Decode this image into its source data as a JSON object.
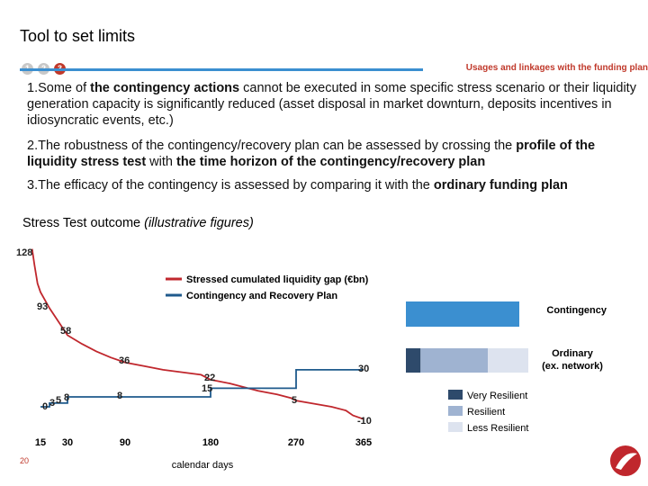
{
  "header": {
    "title": "Tool to set limits",
    "steps": [
      "1",
      "2",
      "3"
    ],
    "usages_label": "Usages and linkages with the funding plan"
  },
  "points": [
    {
      "num": "1.",
      "pre": "Some of ",
      "bold": "the contingency actions",
      "post": " cannot be executed in some specific stress scenario or their liquidity generation capacity is significantly reduced (asset disposal in market downturn, deposits incentives in idiosyncratic events, etc.)"
    },
    {
      "num": "2.",
      "pre": "The robustness of the contingency/recovery plan can be assessed by crossing the ",
      "bold": "profile of the liquidity stress test",
      "mid": " with ",
      "bold2": "the time horizon of the contingency/recovery plan",
      "post": ""
    },
    {
      "num": "3.",
      "pre": "The efficacy of the contingency is assessed by comparing it with the ",
      "bold": "ordinary funding plan",
      "post": ""
    }
  ],
  "chart_title": {
    "main": "Stress Test outcome ",
    "italic": "(illustrative figures)"
  },
  "page_number": "20",
  "colors": {
    "stressed": "#c0272d",
    "recovery": "#1f5a8c",
    "contingency_bar": "#3b8fd0",
    "very_resilient": "#2e4a6b",
    "resilient": "#9fb3d1",
    "less_resilient": "#dde3ef",
    "accent_red": "#c0392b",
    "step_grey": "#c8c8c8"
  },
  "chart_data": {
    "type": "line",
    "xlabel": "calendar days",
    "x_ticks": [
      "15",
      "30",
      "90",
      "180",
      "270",
      "365"
    ],
    "series": [
      {
        "name": "Stressed cumulated liquidity gap (€bn)",
        "x": [
          1,
          5,
          10,
          15,
          20,
          30,
          45,
          60,
          75,
          90,
          110,
          130,
          150,
          170,
          180,
          200,
          215,
          230,
          250,
          265,
          270,
          290,
          300,
          320,
          340,
          350,
          365
        ],
        "y": [
          128,
          115,
          100,
          93,
          80,
          58,
          51,
          45,
          40,
          36,
          33,
          30,
          28,
          26,
          22,
          19,
          16,
          13,
          10,
          7,
          5,
          3,
          2,
          0,
          -3,
          -7,
          -10
        ]
      },
      {
        "name": "Contingency and Recovery Plan",
        "x": [
          15,
          20,
          20,
          30,
          30,
          90,
          90,
          180,
          180,
          270,
          270,
          365
        ],
        "y": [
          0,
          0,
          3,
          3,
          8,
          8,
          8,
          8,
          15,
          15,
          30,
          30
        ]
      }
    ],
    "point_labels": [
      {
        "text": "128",
        "series": "stressed"
      },
      {
        "text": "93",
        "series": "stressed"
      },
      {
        "text": "58",
        "series": "stressed"
      },
      {
        "text": "36",
        "series": "stressed"
      },
      {
        "text": "22",
        "series": "stressed"
      },
      {
        "text": "-10",
        "series": "stressed"
      },
      {
        "text": "0",
        "series": "recovery"
      },
      {
        "text": "3",
        "series": "recovery"
      },
      {
        "text": "5",
        "series": "recovery"
      },
      {
        "text": "8",
        "series": "recovery"
      },
      {
        "text": "8",
        "series": "recovery"
      },
      {
        "text": "15",
        "series": "recovery"
      },
      {
        "text": "5",
        "series": "recovery"
      },
      {
        "text": "30",
        "series": "recovery"
      }
    ],
    "side_bars": [
      {
        "label": "Contingency",
        "segments": [
          {
            "name": "Contingency",
            "value": 100
          }
        ]
      },
      {
        "label": "Ordinary (ex. network)",
        "segments": [
          {
            "name": "Very Resilient",
            "value": 12
          },
          {
            "name": "Resilient",
            "value": 55
          },
          {
            "name": "Less Resilient",
            "value": 33
          }
        ]
      }
    ],
    "side_legend": [
      "Very Resilient",
      "Resilient",
      "Less Resilient"
    ],
    "side_label_lines": {
      "contingency": [
        "Contingency"
      ],
      "ordinary": [
        "Ordinary",
        "(ex. network)"
      ]
    }
  }
}
